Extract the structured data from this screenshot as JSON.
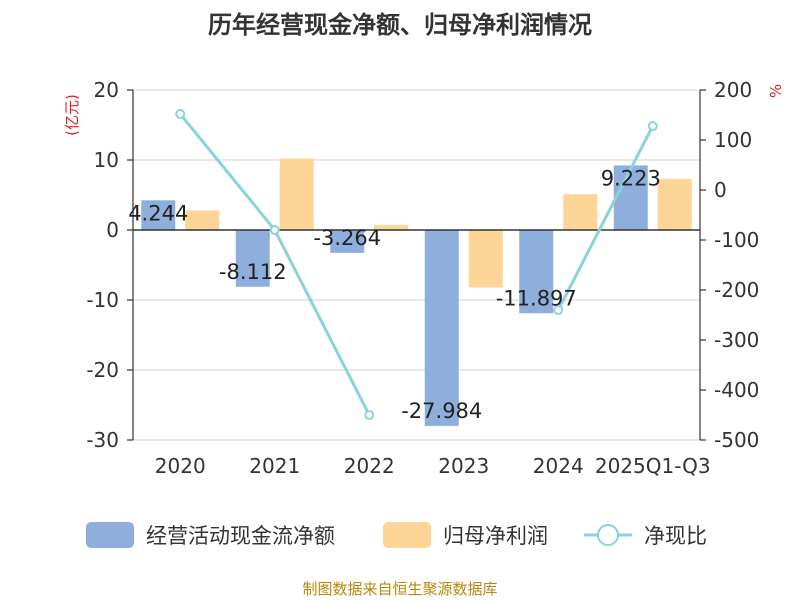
{
  "chart_data": {
    "type": "bar",
    "title": "历年经营现金净额、归母净利润情况",
    "categories": [
      "2020",
      "2021",
      "2022",
      "2023",
      "2024",
      "2025Q1-Q3"
    ],
    "series": [
      {
        "name": "经营活动现金流净额",
        "type": "bar",
        "axis": "left",
        "color": "#8eaedc",
        "values": [
          4.244,
          -8.112,
          -3.264,
          -27.984,
          -11.897,
          9.223
        ]
      },
      {
        "name": "归母净利润",
        "type": "bar",
        "axis": "left",
        "color": "#fdd596",
        "values": [
          2.8,
          10.2,
          0.7,
          -8.2,
          5.1,
          7.3
        ]
      },
      {
        "name": "净现比",
        "type": "line",
        "axis": "right",
        "color": "#88d4d8",
        "values": [
          152,
          -80,
          -450,
          null,
          -240,
          128
        ]
      }
    ],
    "data_labels": [
      "4.244",
      "-8.112",
      "-3.264",
      "-27.984",
      "-11.897",
      "9.223"
    ],
    "left_axis": {
      "unit": "(亿元)",
      "ylim": [
        -30,
        20
      ],
      "ticks": [
        "20",
        "10",
        "0",
        "-10",
        "-20",
        "-30"
      ]
    },
    "right_axis": {
      "unit": "%",
      "ylim": [
        -500,
        200
      ],
      "ticks": [
        "200",
        "100",
        "0",
        "-100",
        "-200",
        "-300",
        "-400",
        "-500"
      ]
    },
    "grid": true,
    "legend_position": "bottom"
  },
  "footer": {
    "source": "制图数据来自恒生聚源数据库"
  }
}
